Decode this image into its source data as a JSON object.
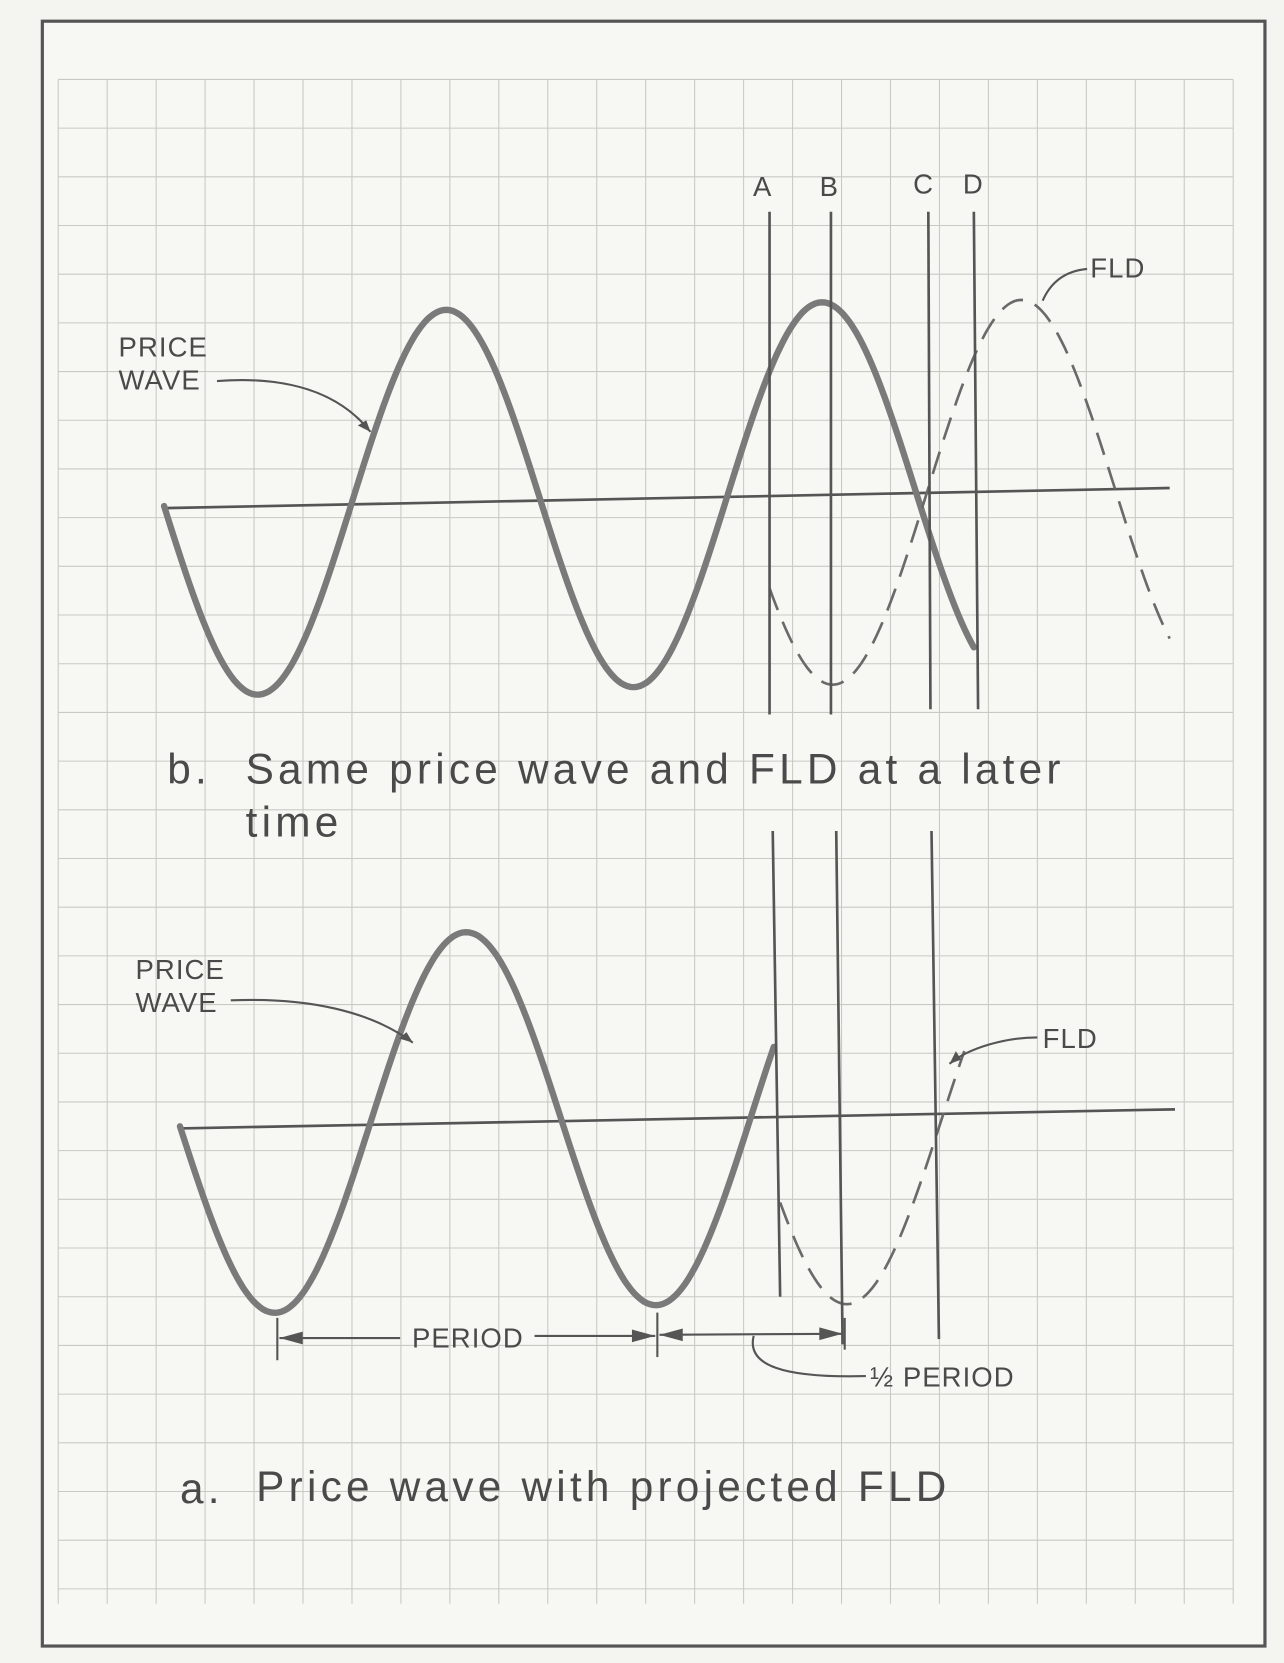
{
  "panel_b": {
    "price_wave_label": [
      "PRICE",
      "WAVE"
    ],
    "fld_label": "FLD",
    "markers": [
      "A",
      "B",
      "C",
      "D"
    ],
    "caption": {
      "letter": "b.",
      "lines": [
        "Same price wave and FLD at a later",
        "time"
      ]
    }
  },
  "panel_a": {
    "price_wave_label": [
      "PRICE",
      "WAVE"
    ],
    "fld_label": "FLD",
    "period": "PERIOD",
    "half_period": "½ PERIOD",
    "caption": {
      "letter": "a.",
      "text": "Price wave with projected FLD"
    }
  }
}
